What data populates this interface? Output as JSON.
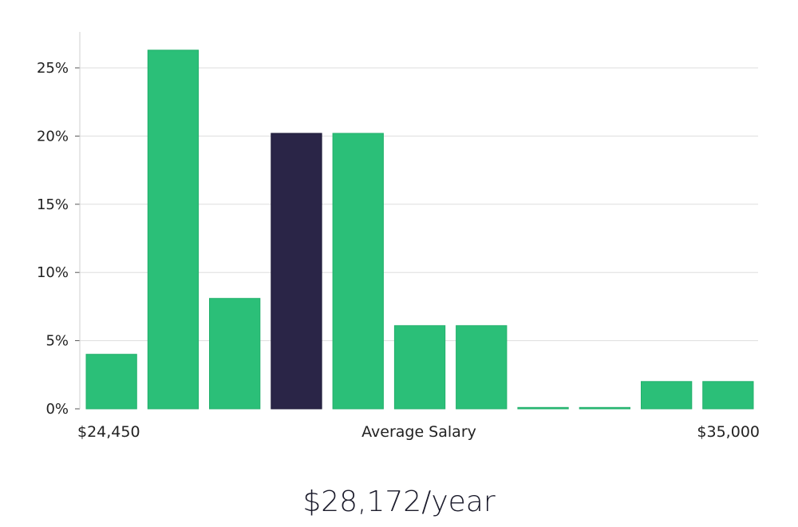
{
  "chart_data": {
    "type": "bar",
    "values": [
      4,
      26.3,
      8.1,
      20.2,
      20.2,
      6.1,
      6.1,
      0.1,
      0.1,
      2,
      2
    ],
    "highlight_index": 3,
    "ylim": [
      0,
      27.5
    ],
    "yticks": [
      0,
      5,
      10,
      15,
      20,
      25
    ],
    "ytick_labels": [
      "0%",
      "5%",
      "10%",
      "15%",
      "20%",
      "25%"
    ],
    "x_left_label": "$24,450",
    "x_center_label": "Average Salary",
    "x_right_label": "$35,000",
    "grid": true,
    "colors": {
      "bar": "#2bbf78",
      "highlight": "#2a2547",
      "grid": "#dedede",
      "axis": "#cfcfcf"
    }
  },
  "headline": "$28,172/year"
}
